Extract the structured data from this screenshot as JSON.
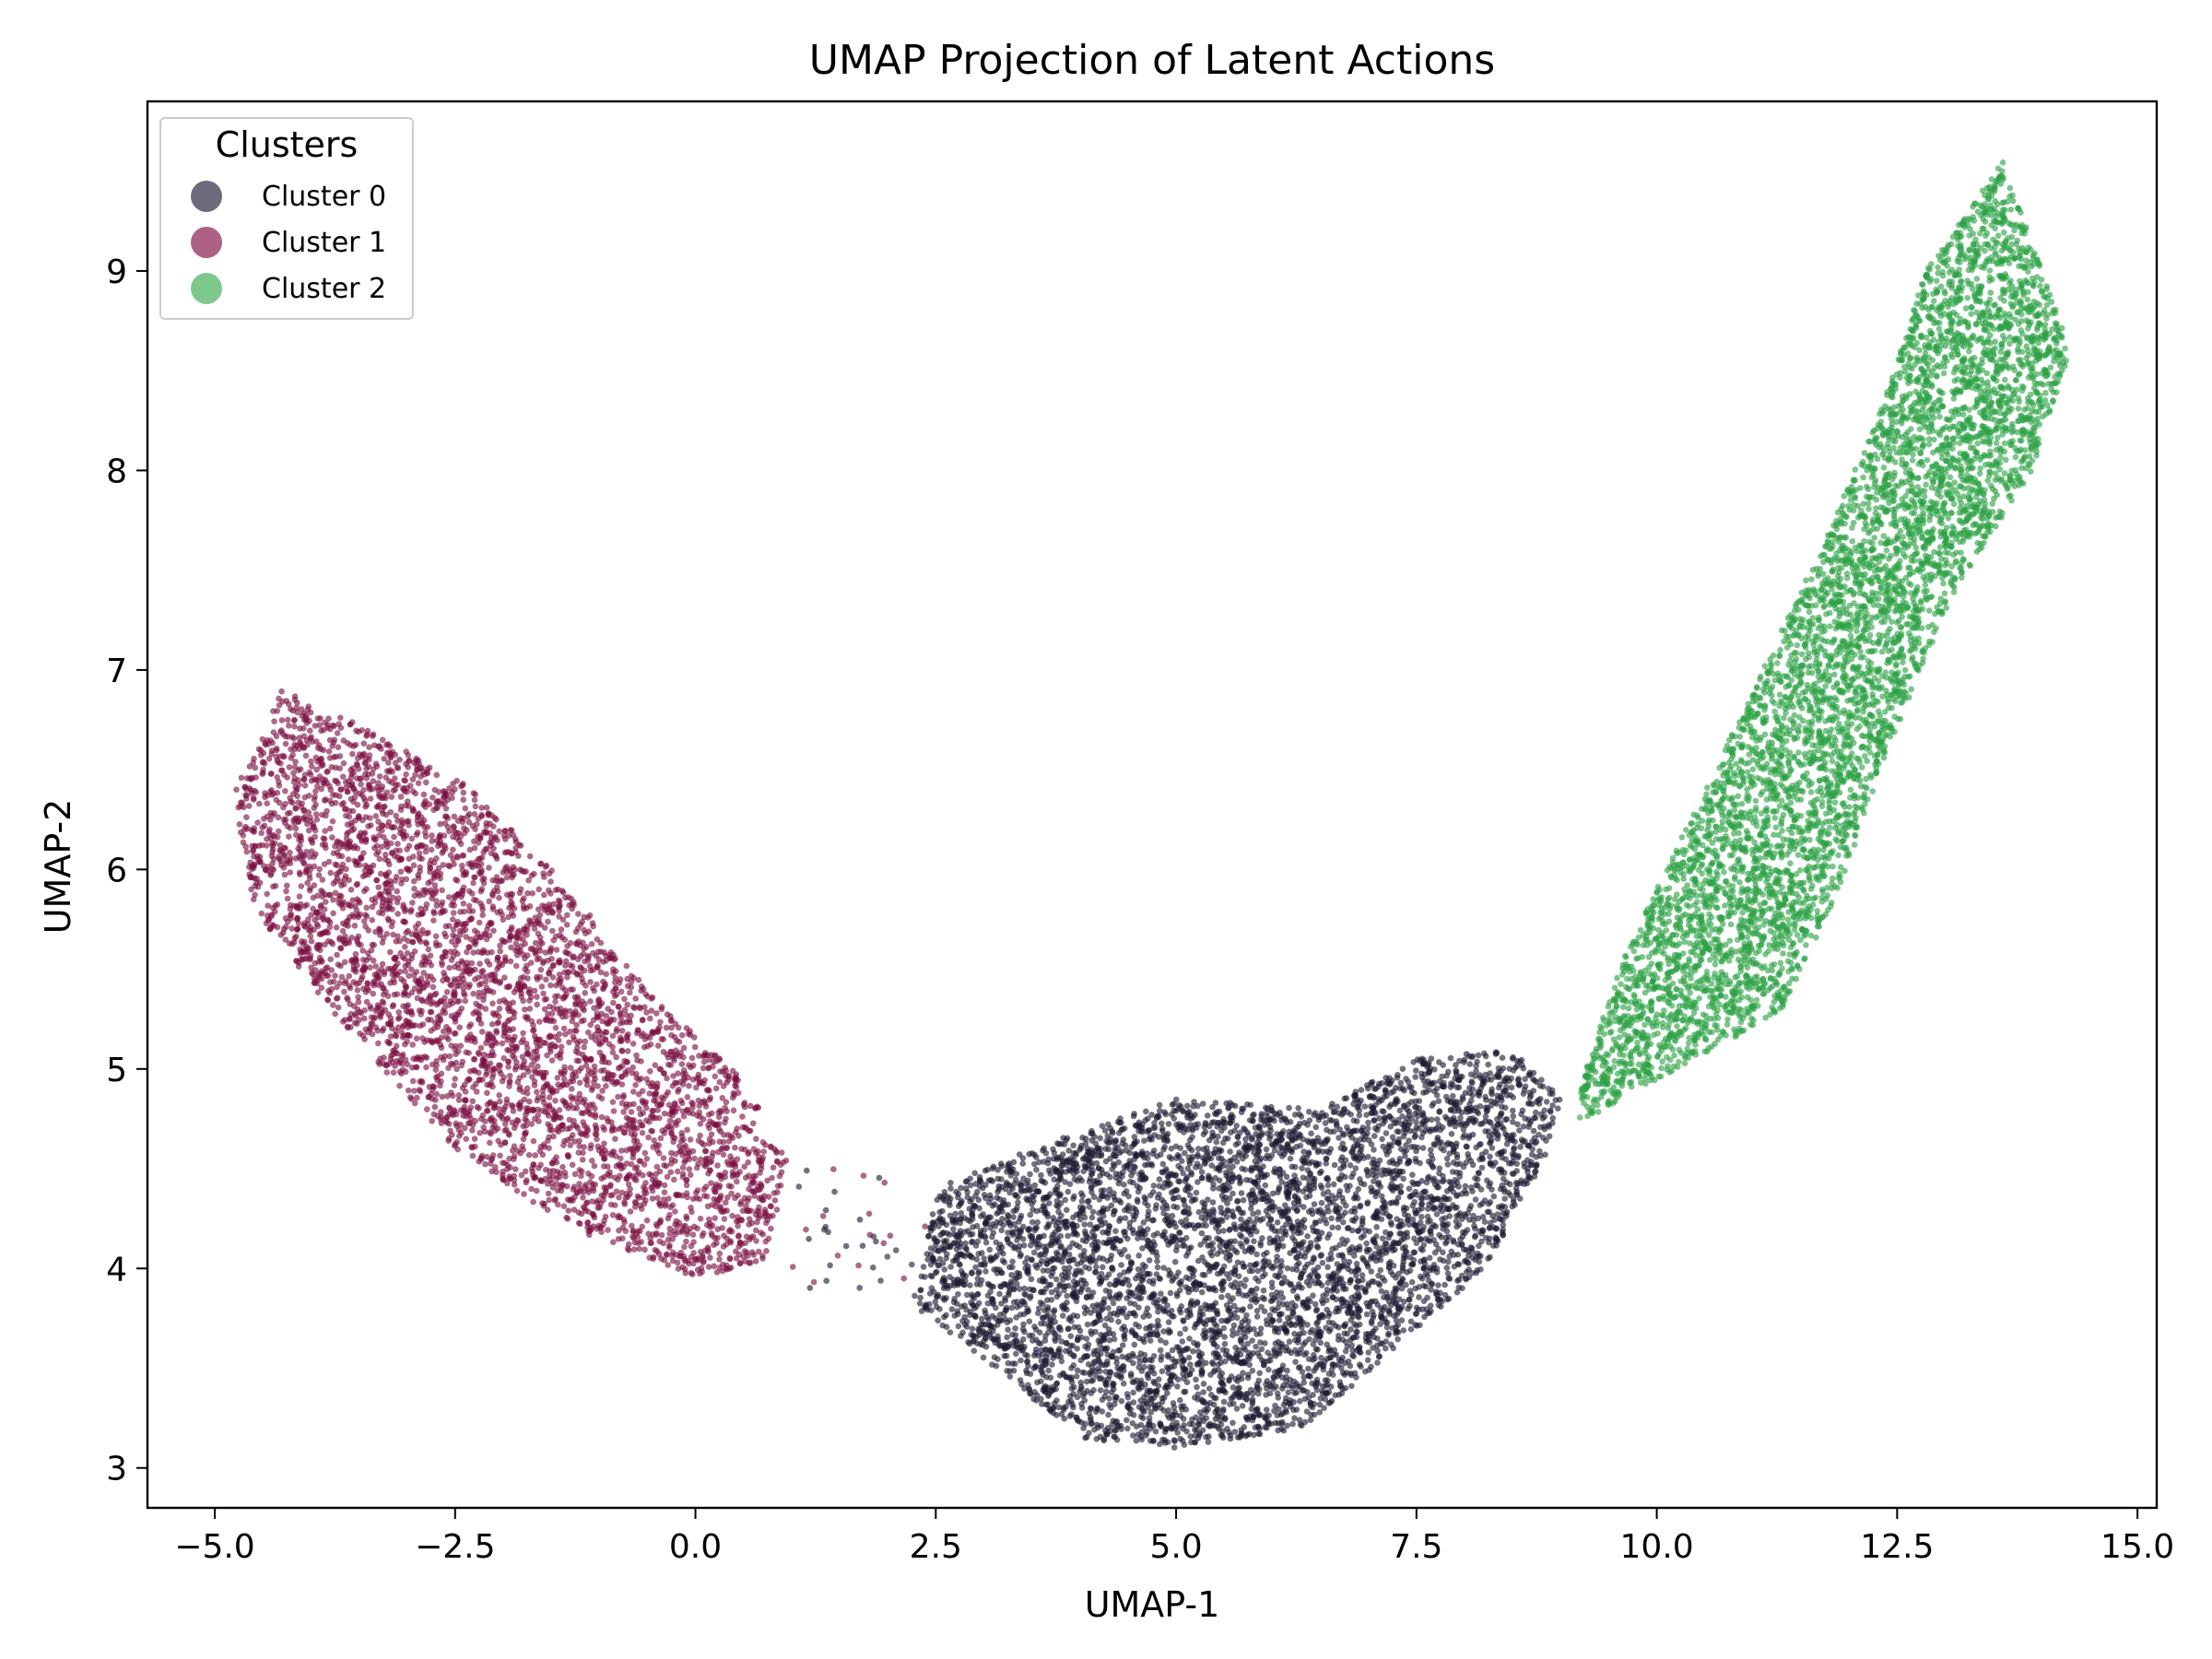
{
  "chart_data": {
    "type": "scatter",
    "title": "UMAP Projection of Latent Actions",
    "xlabel": "UMAP-1",
    "ylabel": "UMAP-2",
    "xlim": [
      -5.7,
      15.2
    ],
    "ylim": [
      2.8,
      9.85
    ],
    "xticks": [
      -5.0,
      -2.5,
      0.0,
      2.5,
      5.0,
      7.5,
      10.0,
      12.5,
      15.0
    ],
    "xtick_labels": [
      "−5.0",
      "−2.5",
      "0.0",
      "2.5",
      "5.0",
      "7.5",
      "10.0",
      "12.5",
      "15.0"
    ],
    "yticks": [
      3,
      4,
      5,
      6,
      7,
      8,
      9
    ],
    "ytick_labels": [
      "3",
      "4",
      "5",
      "6",
      "7",
      "8",
      "9"
    ],
    "grid": false,
    "legend": {
      "title": "Clusters",
      "placement": "upper-left"
    },
    "series": [
      {
        "name": "Cluster 0",
        "color": "#1c1a30",
        "legend_color": "#6b6b7b",
        "approx_points": 5500,
        "x_range": [
          2.3,
          9.0
        ],
        "y_range": [
          3.1,
          5.1
        ],
        "centroid": [
          5.6,
          4.1
        ],
        "outline": [
          [
            2.3,
            3.8
          ],
          [
            2.5,
            4.4
          ],
          [
            3.5,
            4.6
          ],
          [
            5.0,
            4.85
          ],
          [
            6.5,
            4.8
          ],
          [
            7.5,
            5.05
          ],
          [
            8.5,
            5.1
          ],
          [
            9.0,
            4.85
          ],
          [
            8.8,
            4.5
          ],
          [
            8.2,
            4.0
          ],
          [
            7.3,
            3.6
          ],
          [
            6.3,
            3.2
          ],
          [
            5.0,
            3.1
          ],
          [
            4.0,
            3.15
          ],
          [
            3.0,
            3.55
          ]
        ]
      },
      {
        "name": "Cluster 1",
        "color": "#7a0f41",
        "legend_color": "#ad6185",
        "approx_points": 4300,
        "x_range": [
          -4.8,
          1.2
        ],
        "y_range": [
          3.95,
          6.95
        ],
        "centroid": [
          -1.9,
          5.4
        ],
        "outline": [
          [
            -4.8,
            6.4
          ],
          [
            -4.3,
            6.9
          ],
          [
            -3.6,
            6.75
          ],
          [
            -2.3,
            6.4
          ],
          [
            -1.3,
            5.9
          ],
          [
            -0.5,
            5.4
          ],
          [
            0.4,
            5.0
          ],
          [
            1.0,
            4.55
          ],
          [
            0.7,
            4.0
          ],
          [
            0.0,
            3.95
          ],
          [
            -1.3,
            4.2
          ],
          [
            -2.5,
            4.6
          ],
          [
            -3.8,
            5.3
          ],
          [
            -4.6,
            5.8
          ]
        ]
      },
      {
        "name": "Cluster 2",
        "color": "#2ca143",
        "legend_color": "#7dc98b",
        "approx_points": 5800,
        "x_range": [
          9.2,
          14.3
        ],
        "y_range": [
          4.7,
          9.55
        ],
        "centroid": [
          11.9,
          6.9
        ],
        "outline": [
          [
            9.2,
            4.9
          ],
          [
            9.6,
            5.5
          ],
          [
            10.3,
            6.2
          ],
          [
            11.0,
            6.9
          ],
          [
            11.8,
            7.7
          ],
          [
            12.4,
            8.4
          ],
          [
            12.8,
            9.0
          ],
          [
            13.6,
            9.55
          ],
          [
            14.3,
            8.6
          ],
          [
            13.9,
            8.0
          ],
          [
            13.1,
            7.4
          ],
          [
            12.4,
            6.6
          ],
          [
            11.9,
            5.9
          ],
          [
            11.3,
            5.3
          ],
          [
            10.6,
            5.1
          ],
          [
            9.8,
            4.9
          ],
          [
            9.1,
            4.7
          ]
        ]
      }
    ]
  }
}
